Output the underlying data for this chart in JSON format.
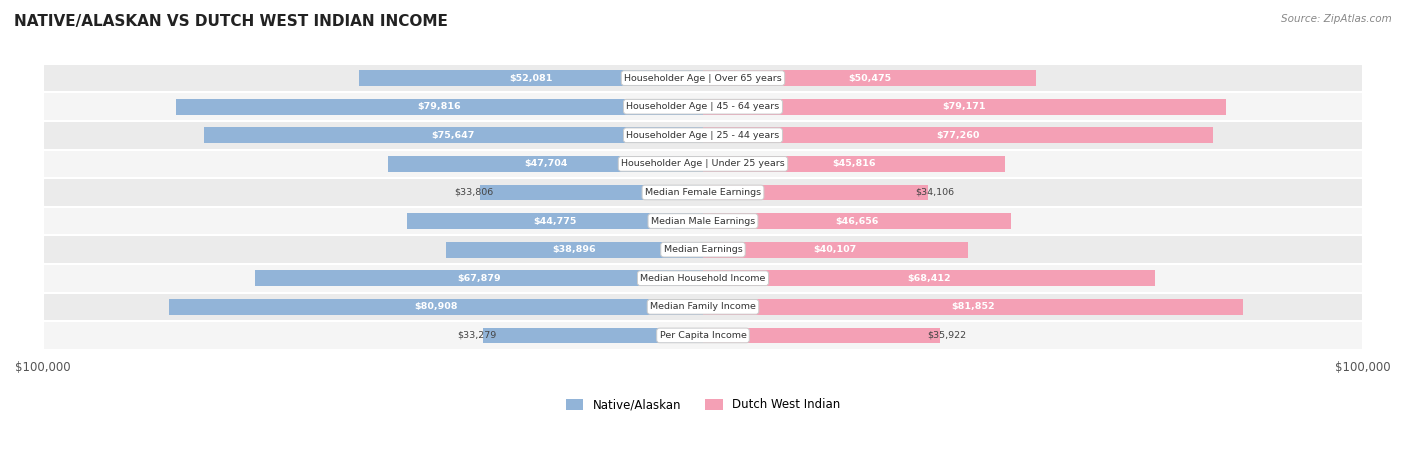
{
  "title": "NATIVE/ALASKAN VS DUTCH WEST INDIAN INCOME",
  "source": "Source: ZipAtlas.com",
  "categories": [
    "Per Capita Income",
    "Median Family Income",
    "Median Household Income",
    "Median Earnings",
    "Median Male Earnings",
    "Median Female Earnings",
    "Householder Age | Under 25 years",
    "Householder Age | 25 - 44 years",
    "Householder Age | 45 - 64 years",
    "Householder Age | Over 65 years"
  ],
  "native_values": [
    33279,
    80908,
    67879,
    38896,
    44775,
    33806,
    47704,
    75647,
    79816,
    52081
  ],
  "dutch_values": [
    35922,
    81852,
    68412,
    40107,
    46656,
    34106,
    45816,
    77260,
    79171,
    50475
  ],
  "native_labels": [
    "$33,279",
    "$80,908",
    "$67,879",
    "$38,896",
    "$44,775",
    "$33,806",
    "$47,704",
    "$75,647",
    "$79,816",
    "$52,081"
  ],
  "dutch_labels": [
    "$35,922",
    "$81,852",
    "$68,412",
    "$40,107",
    "$46,656",
    "$34,106",
    "$45,816",
    "$77,260",
    "$79,171",
    "$50,475"
  ],
  "max_value": 100000,
  "native_color": "#92b4d8",
  "dutch_color": "#f4a0b5",
  "background_color": "#ffffff",
  "legend_native": "Native/Alaskan",
  "legend_dutch": "Dutch West Indian",
  "xlabel_left": "$100,000",
  "xlabel_right": "$100,000",
  "threshold": 38000,
  "row_colors": [
    "#f5f5f5",
    "#ebebeb"
  ]
}
